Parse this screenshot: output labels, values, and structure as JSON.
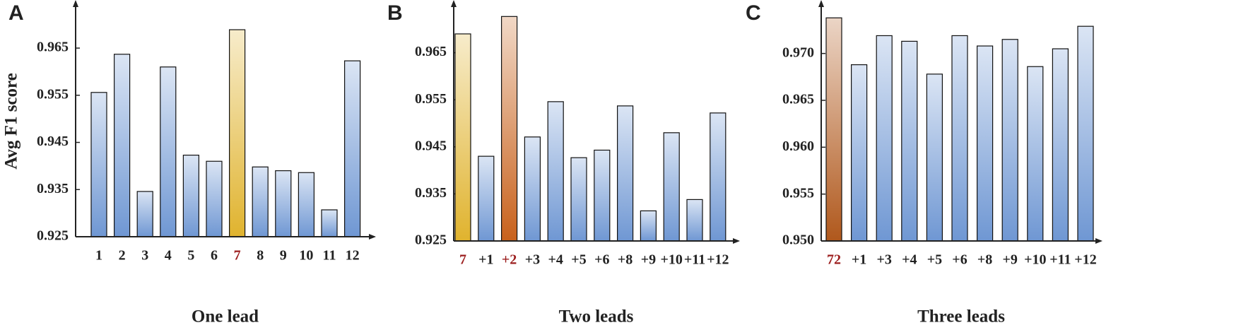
{
  "chart_data": [
    {
      "type": "bar",
      "panel": "A",
      "ylabel": "Avg F1 score",
      "xlabel": "One lead",
      "categories": [
        "1",
        "2",
        "3",
        "4",
        "5",
        "6",
        "7",
        "8",
        "9",
        "10",
        "11",
        "12"
      ],
      "values": [
        0.9556,
        0.9637,
        0.9346,
        0.961,
        0.9423,
        0.941,
        0.9689,
        0.9398,
        0.939,
        0.9386,
        0.9307,
        0.9623
      ],
      "colors": [
        "#6f97d3",
        "#6f97d3",
        "#6f97d3",
        "#6f97d3",
        "#6f97d3",
        "#6f97d3",
        "#e0b32e",
        "#6f97d3",
        "#6f97d3",
        "#6f97d3",
        "#6f97d3",
        "#6f97d3"
      ],
      "label_colors": [
        "#222",
        "#222",
        "#222",
        "#222",
        "#222",
        "#222",
        "#9b1c1c",
        "#222",
        "#222",
        "#222",
        "#222",
        "#222"
      ],
      "ylim": [
        0.925,
        0.974
      ],
      "yticks": [
        0.925,
        0.935,
        0.945,
        0.955,
        0.965
      ]
    },
    {
      "type": "bar",
      "panel": "B",
      "xlabel": "Two leads",
      "categories": [
        "7",
        "+1",
        "+2",
        "+3",
        "+4",
        "+5",
        "+6",
        "+8",
        "+9",
        "+10",
        "+11",
        "+12"
      ],
      "values": [
        0.969,
        0.943,
        0.9727,
        0.9471,
        0.9546,
        0.9427,
        0.9443,
        0.9537,
        0.9314,
        0.948,
        0.9338,
        0.9522
      ],
      "colors": [
        "#e0b32e",
        "#6f97d3",
        "#c8611c",
        "#6f97d3",
        "#6f97d3",
        "#6f97d3",
        "#6f97d3",
        "#6f97d3",
        "#6f97d3",
        "#6f97d3",
        "#6f97d3",
        "#6f97d3"
      ],
      "label_colors": [
        "#9b1c1c",
        "#222",
        "#9b1c1c",
        "#222",
        "#222",
        "#222",
        "#222",
        "#222",
        "#222",
        "#222",
        "#222",
        "#222"
      ],
      "ylim": [
        0.925,
        0.975
      ],
      "yticks": [
        0.925,
        0.935,
        0.945,
        0.955,
        0.965
      ]
    },
    {
      "type": "bar",
      "panel": "C",
      "xlabel": "Three leads",
      "categories": [
        "72",
        "+1",
        "+3",
        "+4",
        "+5",
        "+6",
        "+8",
        "+9",
        "+10",
        "+11",
        "+12"
      ],
      "values": [
        0.9738,
        0.9688,
        0.9719,
        0.9713,
        0.9678,
        0.9719,
        0.9708,
        0.9715,
        0.9686,
        0.9705,
        0.9729
      ],
      "colors": [
        "#b0581c",
        "#6f97d3",
        "#6f97d3",
        "#6f97d3",
        "#6f97d3",
        "#6f97d3",
        "#6f97d3",
        "#6f97d3",
        "#6f97d3",
        "#6f97d3",
        "#6f97d3"
      ],
      "label_colors": [
        "#9b1c1c",
        "#222",
        "#222",
        "#222",
        "#222",
        "#222",
        "#222",
        "#222",
        "#222",
        "#222",
        "#222"
      ],
      "ylim": [
        0.95,
        0.9751
      ],
      "yticks": [
        {
          "value": 0.95,
          "label": "0.950"
        },
        0.955,
        {
          "value": 0.96,
          "label": "0.960"
        },
        0.965,
        {
          "value": 0.97,
          "label": "0.970"
        }
      ]
    }
  ]
}
